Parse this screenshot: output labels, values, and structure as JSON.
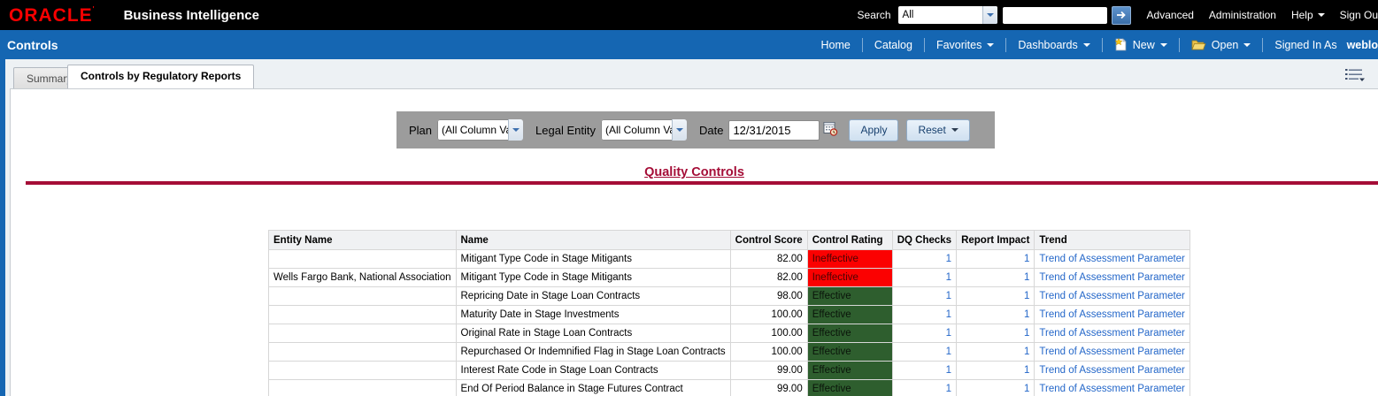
{
  "topbar": {
    "logo": "ORACLE",
    "product": "Business Intelligence",
    "search_label": "Search",
    "search_scope_value": "All",
    "search_input_value": "",
    "advanced": "Advanced",
    "administration": "Administration",
    "help": "Help",
    "sign_out": "Sign Ou"
  },
  "navbar": {
    "page_title": "Controls",
    "home": "Home",
    "catalog": "Catalog",
    "favorites": "Favorites",
    "dashboards": "Dashboards",
    "new_label": "New",
    "open_label": "Open",
    "signed_in_as": "Signed In As",
    "user": "weblo"
  },
  "tabs": [
    {
      "label": "Summary",
      "active": false
    },
    {
      "label": "Controls by Regulatory Reports",
      "active": true
    }
  ],
  "filters": {
    "plan_label": "Plan",
    "plan_value": "(All Column Val",
    "legal_entity_label": "Legal Entity",
    "legal_entity_value": "(All Column Val",
    "date_label": "Date",
    "date_value": "12/31/2015",
    "apply_label": "Apply",
    "reset_label": "Reset"
  },
  "section_title": "Quality Controls",
  "table": {
    "headers": [
      "Entity Name",
      "Name",
      "Control Score",
      "Control Rating",
      "DQ Checks",
      "Report Impact",
      "Trend"
    ],
    "effective_label": "Effective",
    "ineffective_label": "Ineffective",
    "rows": [
      {
        "entity": "",
        "name": "Mitigant Type Code in Stage Mitigants",
        "score": "82.00",
        "rating": "Ineffective",
        "dq_checks": "1",
        "report_impact": "1",
        "trend": "Trend of Assessment Parameter"
      },
      {
        "entity": "Wells Fargo Bank, National Association",
        "name": "Mitigant Type Code in Stage Mitigants",
        "score": "82.00",
        "rating": "Ineffective",
        "dq_checks": "1",
        "report_impact": "1",
        "trend": "Trend of Assessment Parameter"
      },
      {
        "entity": "",
        "name": "Repricing Date in Stage Loan Contracts",
        "score": "98.00",
        "rating": "Effective",
        "dq_checks": "1",
        "report_impact": "1",
        "trend": "Trend of Assessment Parameter"
      },
      {
        "entity": "",
        "name": "Maturity Date in Stage Investments",
        "score": "100.00",
        "rating": "Effective",
        "dq_checks": "1",
        "report_impact": "1",
        "trend": "Trend of Assessment Parameter"
      },
      {
        "entity": "",
        "name": "Original Rate in Stage Loan Contracts",
        "score": "100.00",
        "rating": "Effective",
        "dq_checks": "1",
        "report_impact": "1",
        "trend": "Trend of Assessment Parameter"
      },
      {
        "entity": "",
        "name": "Repurchased Or Indemnified Flag in Stage Loan Contracts",
        "score": "100.00",
        "rating": "Effective",
        "dq_checks": "1",
        "report_impact": "1",
        "trend": "Trend of Assessment Parameter"
      },
      {
        "entity": "",
        "name": "Interest Rate Code in Stage Loan Contracts",
        "score": "99.00",
        "rating": "Effective",
        "dq_checks": "1",
        "report_impact": "1",
        "trend": "Trend of Assessment Parameter"
      },
      {
        "entity": "",
        "name": "End Of Period Balance in Stage Futures Contract",
        "score": "99.00",
        "rating": "Effective",
        "dq_checks": "1",
        "report_impact": "1",
        "trend": "Trend of Assessment Parameter"
      }
    ]
  },
  "colors": {
    "brand_blue": "#1566b2",
    "oracle_red": "#f80000",
    "title_red": "#a50d37",
    "effective_green": "#2e5e2e",
    "ineffective_red": "#fb0101",
    "link_blue": "#2467c9",
    "filter_gray": "#9c9c9c"
  },
  "icons": {
    "search_go": "right-arrow",
    "new_document": "page-with-star",
    "open_folder": "open-folder",
    "calendar": "calendar-with-clock",
    "page_options": "list-menu-caret",
    "dropdown": "chevron-down"
  }
}
